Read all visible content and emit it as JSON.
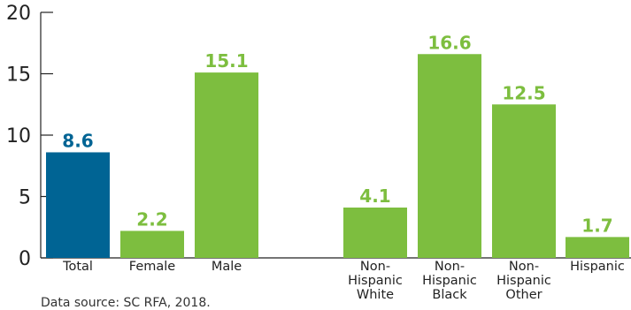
{
  "chart_data": {
    "type": "bar",
    "categories": [
      "Total",
      "Female",
      "Male",
      "Non-\nHispanic\nWhite",
      "Non-\nHispanic\nBlack",
      "Non-\nHispanic\nOther",
      "Hispanic"
    ],
    "values": [
      8.6,
      2.2,
      15.1,
      4.1,
      16.6,
      12.5,
      1.7
    ],
    "value_labels": [
      "8.6",
      "2.2",
      "15.1",
      "4.1",
      "16.6",
      "12.5",
      "1.7"
    ],
    "bar_colors": [
      "#006494",
      "#7DBE3F",
      "#7DBE3F",
      "#7DBE3F",
      "#7DBE3F",
      "#7DBE3F",
      "#7DBE3F"
    ],
    "label_colors": [
      "#006494",
      "#7DBE3F",
      "#7DBE3F",
      "#7DBE3F",
      "#7DBE3F",
      "#7DBE3F",
      "#7DBE3F"
    ],
    "ylim": [
      0,
      20
    ],
    "yticks": [
      0,
      5,
      10,
      15,
      20
    ],
    "ytick_labels": [
      "0",
      "5",
      "10",
      "15",
      "20"
    ],
    "grid": false,
    "legend": "none",
    "title": "",
    "xlabel": "",
    "ylabel": ""
  },
  "source_note": "Data source: SC RFA, 2018."
}
